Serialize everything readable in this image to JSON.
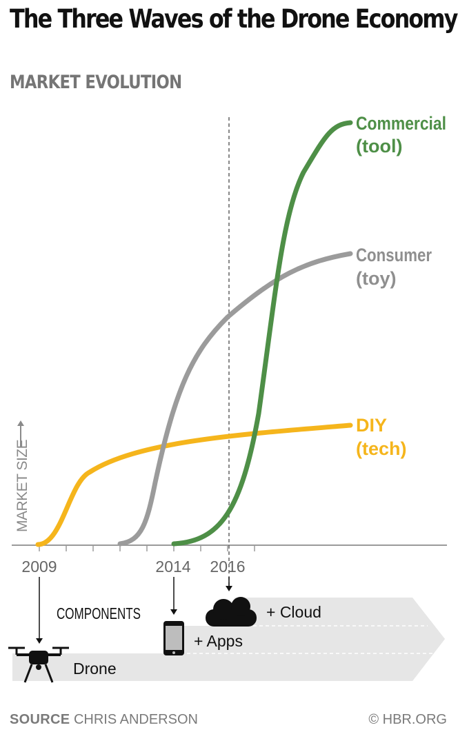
{
  "title": "The Three Waves of the Drone Economy",
  "subtitle": "MARKET EVOLUTION",
  "chart_data": {
    "type": "line",
    "ylabel": "MARKET SIZE",
    "x_ticks": [
      "2009",
      "2014",
      "2016"
    ],
    "marker_year": "2016",
    "series": [
      {
        "name": "DIY",
        "sub": "(tech)",
        "color": "#f5b51c"
      },
      {
        "name": "Consumer",
        "sub": "(toy)",
        "color": "#9b9b9b"
      },
      {
        "name": "Commercial",
        "sub": "(tool)",
        "color": "#4e8f47"
      }
    ]
  },
  "components": {
    "heading": "COMPONENTS",
    "layers": [
      {
        "label": "Drone",
        "icon": "drone-icon",
        "year": "2009"
      },
      {
        "label": "+ Apps",
        "icon": "smartphone-icon",
        "year": "2014"
      },
      {
        "label": "+ Cloud",
        "icon": "cloud-icon",
        "year": "2016"
      }
    ]
  },
  "source": {
    "label": "SOURCE",
    "text": "CHRIS ANDERSON"
  },
  "credit": "© HBR.ORG"
}
